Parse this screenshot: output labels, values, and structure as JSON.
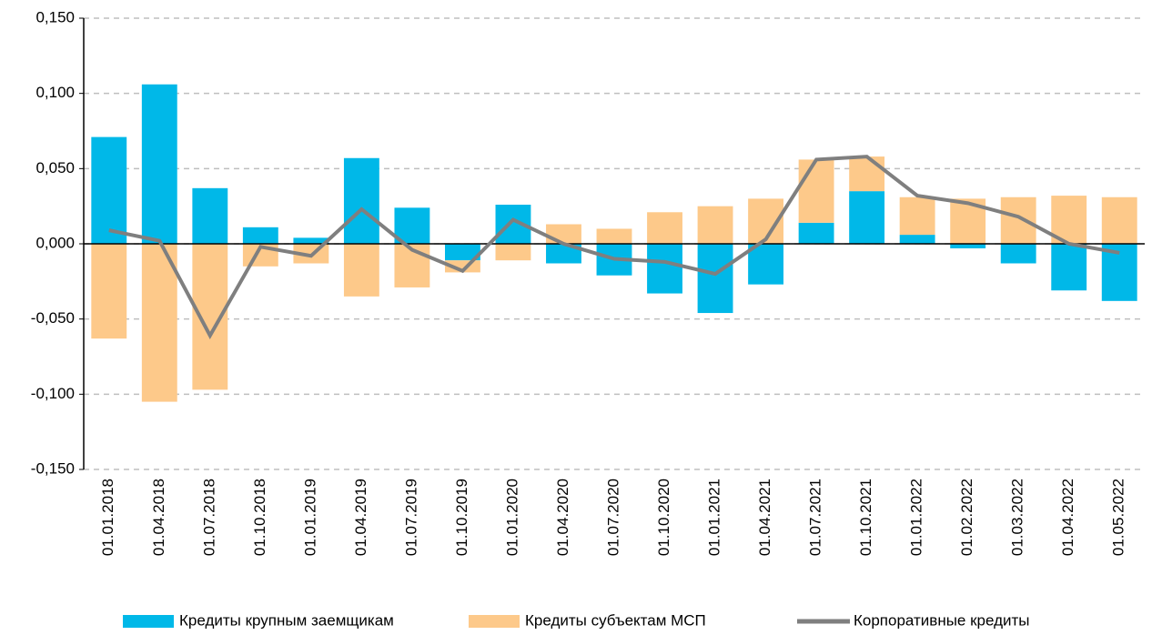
{
  "chart_data": {
    "type": "bar",
    "stacked": true,
    "categories": [
      "01.01.2018",
      "01.04.2018",
      "01.07.2018",
      "01.10.2018",
      "01.01.2019",
      "01.04.2019",
      "01.07.2019",
      "01.10.2019",
      "01.01.2020",
      "01.04.2020",
      "01.07.2020",
      "01.10.2020",
      "01.01.2021",
      "01.04.2021",
      "01.07.2021",
      "01.10.2021",
      "01.01.2022",
      "01.02.2022",
      "01.03.2022",
      "01.04.2022",
      "01.05.2022"
    ],
    "series": [
      {
        "name": "Кредиты крупным заемщикам",
        "type": "bar",
        "color": "#00b8e8",
        "values": [
          0.071,
          0.106,
          0.037,
          0.011,
          0.004,
          0.057,
          0.024,
          -0.011,
          0.026,
          -0.013,
          -0.021,
          -0.033,
          -0.046,
          -0.027,
          0.014,
          0.035,
          0.006,
          -0.003,
          -0.013,
          -0.031,
          -0.038
        ]
      },
      {
        "name": "Кредиты субъектам МСП",
        "type": "bar",
        "color": "#fdc98a",
        "values": [
          -0.063,
          -0.105,
          -0.097,
          -0.015,
          -0.013,
          -0.035,
          -0.029,
          -0.008,
          -0.011,
          0.013,
          0.01,
          0.021,
          0.025,
          0.03,
          0.042,
          0.023,
          0.025,
          0.03,
          0.031,
          0.032,
          0.031
        ]
      },
      {
        "name": "Корпоративные кредиты",
        "type": "line",
        "color": "#7f7f7f",
        "values": [
          0.009,
          0.002,
          -0.061,
          -0.002,
          -0.008,
          0.023,
          -0.004,
          -0.018,
          0.016,
          0.0,
          -0.01,
          -0.012,
          -0.02,
          0.003,
          0.056,
          0.058,
          0.032,
          0.027,
          0.018,
          0.0,
          -0.006
        ]
      }
    ],
    "ylim": [
      -0.15,
      0.15
    ],
    "yticks": [
      {
        "value": -0.15,
        "label": "-0,150"
      },
      {
        "value": -0.1,
        "label": "-0,100"
      },
      {
        "value": -0.05,
        "label": "-0,050"
      },
      {
        "value": 0,
        "label": "0,000"
      },
      {
        "value": 0.05,
        "label": "0,050"
      },
      {
        "value": 0.1,
        "label": "0,100"
      },
      {
        "value": 0.15,
        "label": "0,150"
      }
    ],
    "grid": true,
    "legend": "bottom"
  }
}
